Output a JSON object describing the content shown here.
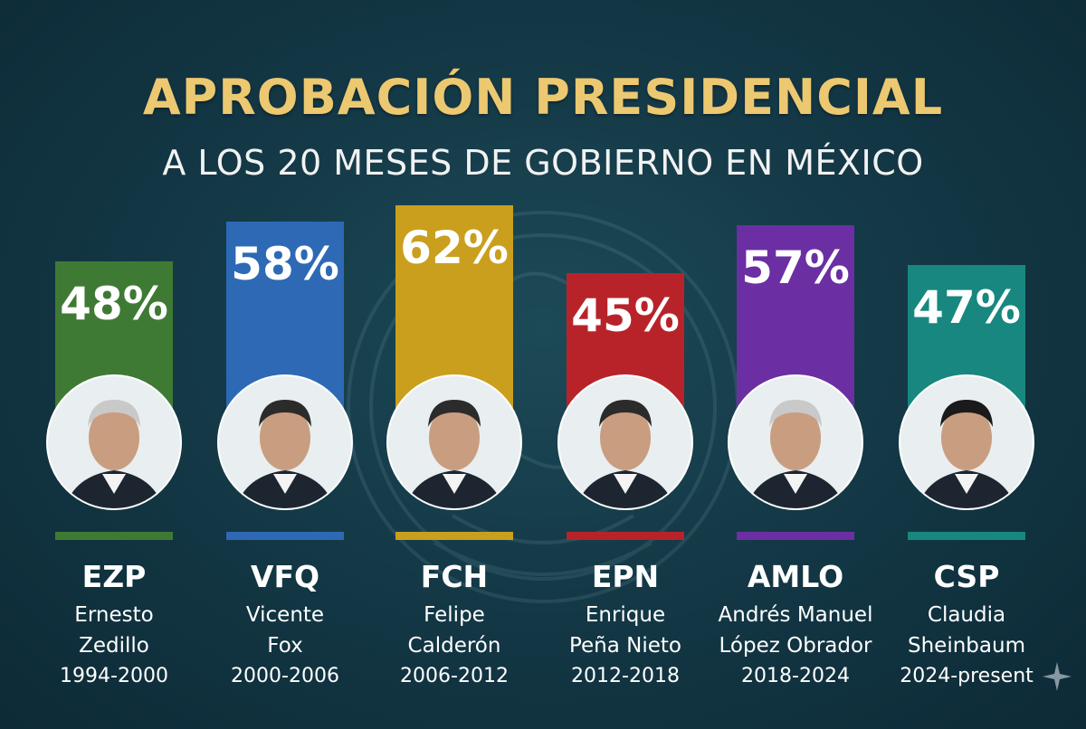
{
  "chart_data": {
    "type": "bar",
    "title": "APROBACIÓN PRESIDENCIAL",
    "subtitle": "A LOS 20 MESES DE GOBIERNO EN MÉXICO",
    "ylim": [
      0,
      100
    ],
    "categories": [
      "EZP",
      "VFQ",
      "FCH",
      "EPN",
      "AMLO",
      "CSP"
    ],
    "values": [
      48,
      58,
      62,
      45,
      57,
      47
    ],
    "value_labels": [
      "48%",
      "58%",
      "62%",
      "45%",
      "57%",
      "47%"
    ],
    "name_line1": [
      "Ernesto",
      "Vicente",
      "Felipe",
      "Enrique",
      "Andrés Manuel",
      "Claudia"
    ],
    "name_line2": [
      "Zedillo",
      "Fox",
      "Calderón",
      "Peña Nieto",
      "López Obrador",
      "Sheinbaum"
    ],
    "years": [
      "1994-2000",
      "2000-2006",
      "2006-2012",
      "2012-2018",
      "2018-2024",
      "2024-present"
    ],
    "colors": [
      "#3f7a34",
      "#2e69b5",
      "#c99f1d",
      "#b8232a",
      "#6b2fa3",
      "#17877f"
    ],
    "grid": false,
    "legend": "none"
  }
}
